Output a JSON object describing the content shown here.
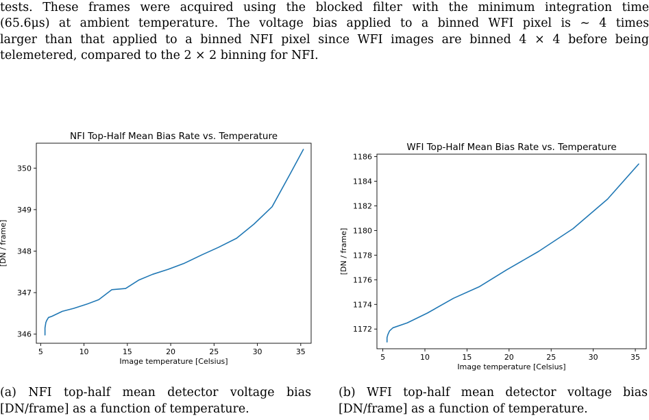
{
  "paragraph": {
    "lines": [
      "tests.  These frames were acquired using the blocked filter with the minimum integration time",
      "(65.6μs) at ambient temperature.  The voltage bias applied to a binned WFI pixel is ∼ 4 times",
      "larger than that applied to a binned NFI pixel since WFI images are binned 4 × 4 before being",
      "telemetered, compared to the 2 × 2 binning for NFI."
    ]
  },
  "captions": {
    "a": {
      "lines": [
        "(a)  NFI  top-half  mean  detector  voltage  bias",
        "[DN/frame] as a function of temperature."
      ]
    },
    "b": {
      "lines": [
        "(b)  WFI  top-half  mean  detector  voltage  bias",
        "[DN/frame] as a function of temperature."
      ]
    }
  },
  "colors": {
    "series": "#1f77b4",
    "text": "#000000",
    "background": "#ffffff"
  },
  "chart_data": [
    {
      "type": "line",
      "title": "NFI Top-Half Mean Bias Rate vs. Temperature",
      "xlabel": "Image temperature [Celsius]",
      "ylabel": "[DN / frame]",
      "xlim": [
        4.5,
        36.2
      ],
      "ylim": [
        345.78,
        350.6
      ],
      "xticks": [
        5,
        10,
        15,
        20,
        25,
        30,
        35
      ],
      "yticks": [
        346,
        347,
        348,
        349,
        350
      ],
      "grid": false,
      "series": [
        {
          "x": [
            5.5,
            5.5,
            5.6,
            5.7,
            5.9,
            6.3,
            7.5,
            8.8,
            10.3,
            11.7,
            13.2,
            14.8,
            16.3,
            17.9,
            19.7,
            21.6,
            23.6,
            25.5,
            27.6,
            29.6,
            31.7,
            33.7,
            35.3
          ],
          "y": [
            345.98,
            346.15,
            346.28,
            346.33,
            346.4,
            346.43,
            346.55,
            346.62,
            346.72,
            346.83,
            347.07,
            347.1,
            347.3,
            347.44,
            347.56,
            347.71,
            347.91,
            348.09,
            348.31,
            348.65,
            349.07,
            349.83,
            350.45
          ]
        }
      ]
    },
    {
      "type": "line",
      "title": "WFI Top-Half Mean Bias Rate vs. Temperature",
      "xlabel": "Image temperature [Celsius]",
      "ylabel": "[DN / frame]",
      "xlim": [
        4.3,
        36.3
      ],
      "ylim": [
        1170.4,
        1186.2
      ],
      "xticks": [
        5,
        10,
        15,
        20,
        25,
        30,
        35
      ],
      "yticks": [
        1172,
        1174,
        1176,
        1178,
        1180,
        1182,
        1184,
        1186
      ],
      "grid": false,
      "series": [
        {
          "x": [
            5.5,
            5.5,
            5.6,
            5.8,
            6.2,
            7.9,
            10.3,
            13.4,
            16.5,
            19.7,
            23.5,
            27.6,
            31.7,
            35.4
          ],
          "y": [
            1170.95,
            1171.3,
            1171.55,
            1171.85,
            1172.1,
            1172.5,
            1173.3,
            1174.5,
            1175.45,
            1176.8,
            1178.3,
            1180.15,
            1182.55,
            1185.4
          ]
        }
      ]
    }
  ]
}
